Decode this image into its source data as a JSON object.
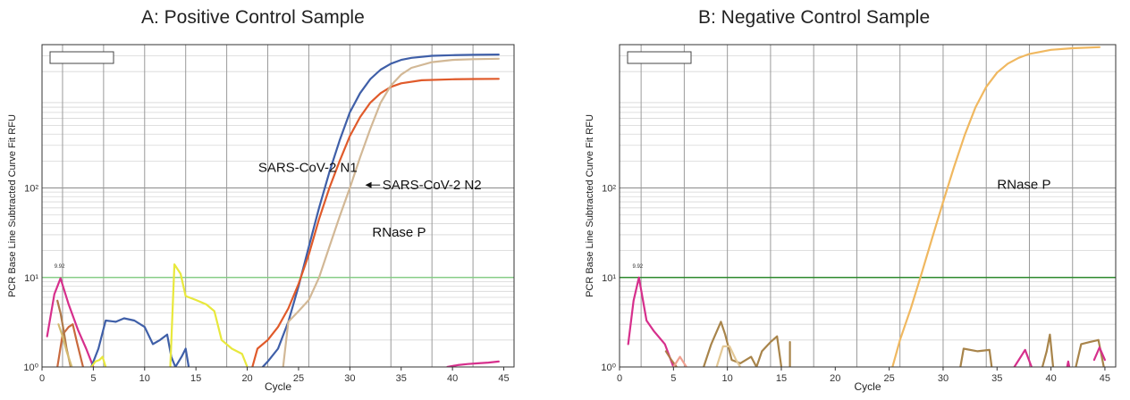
{
  "chart_data": [
    {
      "type": "line",
      "panel": "A",
      "title": "A: Positive Control Sample",
      "xlabel": "Cycle",
      "ylabel": "PCR Base Line Subtracted Curve Fit RFU",
      "xlim": [
        0,
        46
      ],
      "ylim": [
        1,
        4000
      ],
      "yscale": "log",
      "x_ticks": [
        0,
        5,
        10,
        15,
        20,
        25,
        30,
        35,
        40,
        45
      ],
      "y_ticks": [
        {
          "value": 1,
          "label": "10⁰"
        },
        {
          "value": 10,
          "label": "10¹"
        },
        {
          "value": 100,
          "label": "10²"
        }
      ],
      "threshold": {
        "value": 10,
        "label": "9.92",
        "color": "#7ed07e"
      },
      "grid": true,
      "series": [
        {
          "name": "SARS-CoV-2 N1",
          "color": "#3f5fa8",
          "x": [
            21.5,
            22,
            23,
            24,
            25,
            26,
            27,
            28,
            29,
            30,
            31,
            32,
            33,
            34,
            35,
            36,
            38,
            40,
            42,
            44.5
          ],
          "y": [
            1.0,
            1.15,
            1.6,
            3.2,
            8,
            22,
            60,
            150,
            340,
            700,
            1150,
            1650,
            2100,
            2450,
            2700,
            2850,
            3000,
            3050,
            3080,
            3100
          ]
        },
        {
          "name": "SARS-CoV-2 N2",
          "color": "#e05a2a",
          "x": [
            20.5,
            21,
            22,
            23,
            24,
            25,
            26,
            27,
            28,
            29,
            30,
            31,
            32,
            33,
            34,
            35,
            37,
            40,
            42,
            44.5
          ],
          "y": [
            1.0,
            1.6,
            2.0,
            2.8,
            4.5,
            8.5,
            18,
            45,
            100,
            200,
            380,
            620,
            900,
            1150,
            1350,
            1480,
            1600,
            1640,
            1650,
            1660
          ]
        },
        {
          "name": "RNase P",
          "color": "#d2b896",
          "x": [
            23.5,
            24,
            25,
            26,
            27,
            28,
            29,
            30,
            31,
            32,
            33,
            34,
            35,
            36,
            38,
            40,
            42,
            44.5
          ],
          "y": [
            1.0,
            3.2,
            4.2,
            5.6,
            10,
            22,
            48,
            100,
            220,
            460,
            900,
            1400,
            1850,
            2200,
            2550,
            2700,
            2750,
            2780
          ]
        },
        {
          "name": "",
          "color": "#d62f8c",
          "x": [
            0.5,
            1.2,
            1.8,
            2.6,
            3.5,
            4.3,
            5.0
          ],
          "y": [
            2.2,
            6.5,
            9.8,
            5.0,
            2.6,
            1.6,
            1.0
          ]
        },
        {
          "name": "",
          "color": "#c96a3e",
          "x": [
            1.5,
            2.0,
            2.6,
            3.0,
            3.4,
            4.0
          ],
          "y": [
            1.0,
            2.3,
            2.8,
            3.0,
            1.9,
            1.0
          ]
        },
        {
          "name": "",
          "color": "#b07a4a",
          "x": [
            1.5,
            1.8,
            2.1,
            2.4,
            2.8
          ],
          "y": [
            5.5,
            4.0,
            2.6,
            1.6,
            1.0
          ]
        },
        {
          "name": "",
          "color": "#d4ba70",
          "x": [
            1.6,
            2.0,
            2.4,
            2.9
          ],
          "y": [
            3.0,
            2.2,
            1.5,
            1.0
          ]
        },
        {
          "name": "",
          "color": "#3f5fa8",
          "x": [
            4.8,
            5.5,
            6.2,
            7.2,
            8.0,
            9.0,
            10.0,
            10.8,
            11.5,
            12.2,
            12.6,
            13.0,
            13.6,
            14.0,
            14.3
          ],
          "y": [
            1.0,
            1.6,
            3.3,
            3.2,
            3.5,
            3.3,
            2.8,
            1.8,
            2.0,
            2.3,
            1.3,
            1.0,
            1.3,
            1.6,
            1.0
          ]
        },
        {
          "name": "",
          "color": "#e8e83c",
          "x": [
            4.8,
            5.2,
            5.6,
            5.9,
            6.2
          ],
          "y": [
            1.0,
            1.15,
            1.2,
            1.3,
            1.0
          ]
        },
        {
          "name": "",
          "color": "#e8e83c",
          "x": [
            12.5,
            12.9,
            13.5,
            14.0,
            15.0,
            16.0,
            16.8,
            17.5,
            18.5,
            19.5,
            20.0
          ],
          "y": [
            1.0,
            14.0,
            11.0,
            6.2,
            5.6,
            5.0,
            4.2,
            2.0,
            1.6,
            1.4,
            1.0
          ]
        },
        {
          "name": "",
          "color": "#d62f8c",
          "x": [
            39.5,
            40.5,
            41.5,
            42.5,
            43.5,
            44.5
          ],
          "y": [
            1.0,
            1.05,
            1.08,
            1.1,
            1.12,
            1.15
          ]
        }
      ],
      "annotations": [
        {
          "text": "SARS-CoV-2 N1",
          "x": 25.9,
          "y": 170
        },
        {
          "text": "SARS-CoV-2 N2",
          "x": 38.0,
          "y": 108,
          "arrow_to": [
            31.5,
            108
          ]
        },
        {
          "text": "RNase P",
          "x": 34.8,
          "y": 32
        }
      ]
    },
    {
      "type": "line",
      "panel": "B",
      "title": "B: Negative Control Sample",
      "xlabel": "Cycle",
      "ylabel": "PCR Base Line Subtracted Curve Fit RFU",
      "xlim": [
        0,
        46
      ],
      "ylim": [
        1,
        4000
      ],
      "yscale": "log",
      "x_ticks": [
        0,
        5,
        10,
        15,
        20,
        25,
        30,
        35,
        40,
        45
      ],
      "y_ticks": [
        {
          "value": 1,
          "label": "10⁰"
        },
        {
          "value": 10,
          "label": "10¹"
        },
        {
          "value": 100,
          "label": "10²"
        }
      ],
      "threshold": {
        "value": 10,
        "label": "9.92",
        "color": "#2d8a2d"
      },
      "grid": true,
      "series": [
        {
          "name": "RNase P",
          "color": "#f0b860",
          "x": [
            25.3,
            26,
            27,
            28,
            29,
            30,
            31,
            32,
            33,
            34,
            35,
            36,
            37,
            38,
            40,
            42,
            44.5
          ],
          "y": [
            1.0,
            2.0,
            4.5,
            11,
            28,
            70,
            170,
            390,
            800,
            1350,
            1950,
            2450,
            2850,
            3150,
            3500,
            3650,
            3750
          ]
        },
        {
          "name": "",
          "color": "#d62f8c",
          "x": [
            0.8,
            1.3,
            1.8,
            2.5,
            3.2,
            4.2,
            5.0
          ],
          "y": [
            1.8,
            5.5,
            10.0,
            3.3,
            2.5,
            1.8,
            1.0
          ]
        },
        {
          "name": "",
          "color": "#b07a4a",
          "x": [
            4.3,
            4.8,
            5.3
          ],
          "y": [
            1.5,
            1.2,
            1.0
          ]
        },
        {
          "name": "",
          "color": "#f0a090",
          "x": [
            5.0,
            5.6,
            6.2
          ],
          "y": [
            1.0,
            1.3,
            1.0
          ]
        },
        {
          "name": "",
          "color": "#a8844a",
          "x": [
            7.8,
            8.5,
            9.4,
            9.8,
            10.4,
            11.2,
            12.2,
            12.7,
            13.2,
            14.0,
            14.6,
            15.0
          ],
          "y": [
            1.0,
            1.8,
            3.2,
            2.3,
            1.2,
            1.1,
            1.3,
            1.0,
            1.5,
            1.9,
            2.2,
            1.0
          ]
        },
        {
          "name": "",
          "color": "#e3c896",
          "x": [
            9.0,
            9.6,
            10.2,
            10.8,
            11.2
          ],
          "y": [
            1.0,
            1.7,
            1.7,
            1.2,
            1.0
          ]
        },
        {
          "name": "",
          "color": "#a8844a",
          "x": [
            15.8,
            15.8
          ],
          "y": [
            1.0,
            1.9
          ]
        },
        {
          "name": "",
          "color": "#a8844a",
          "x": [
            31.6,
            31.9,
            33.2,
            34.3,
            34.5
          ],
          "y": [
            1.0,
            1.6,
            1.5,
            1.55,
            1.0
          ]
        },
        {
          "name": "",
          "color": "#d62f8c",
          "x": [
            36.6,
            37.6,
            38.2
          ],
          "y": [
            1.0,
            1.55,
            1.0
          ]
        },
        {
          "name": "",
          "color": "#a8844a",
          "x": [
            39.2,
            39.6,
            39.9,
            40.2
          ],
          "y": [
            1.0,
            1.5,
            2.3,
            1.0
          ]
        },
        {
          "name": "",
          "color": "#d62f8c",
          "x": [
            41.5,
            41.6,
            41.7
          ],
          "y": [
            1.0,
            1.15,
            1.0
          ]
        },
        {
          "name": "",
          "color": "#a8844a",
          "x": [
            42.3,
            42.8,
            43.6,
            44.4,
            44.9
          ],
          "y": [
            1.0,
            1.8,
            1.9,
            2.0,
            1.0
          ]
        },
        {
          "name": "",
          "color": "#d62f8c",
          "x": [
            44.0,
            44.5,
            45.0
          ],
          "y": [
            1.2,
            1.65,
            1.2
          ]
        }
      ],
      "annotations": [
        {
          "text": "RNase P",
          "x": 37.5,
          "y": 110
        }
      ]
    }
  ]
}
